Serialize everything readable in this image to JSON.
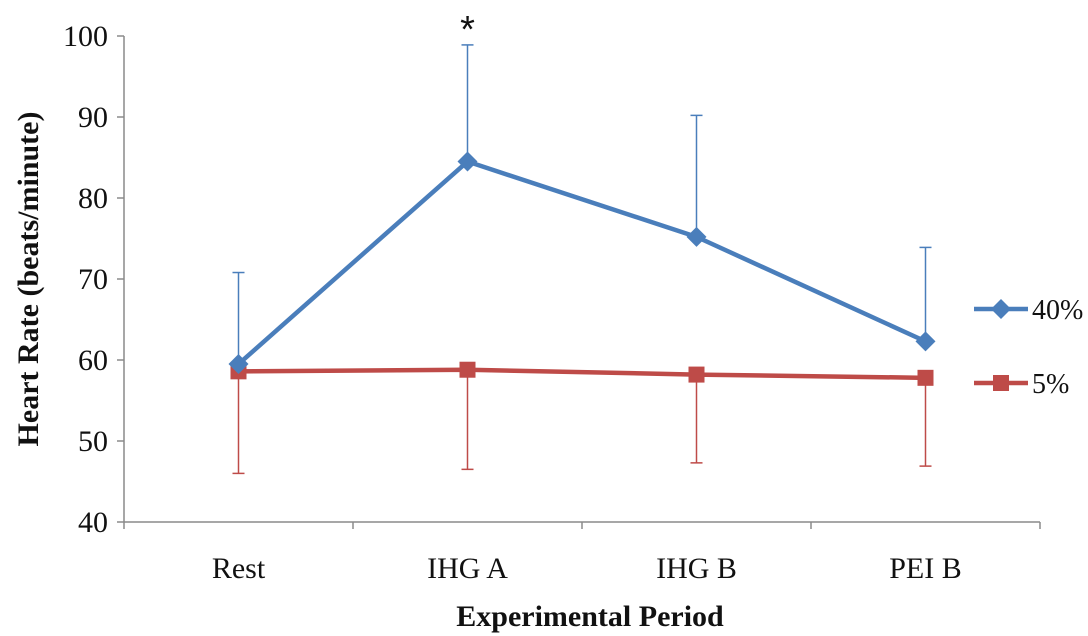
{
  "chart_data": {
    "type": "line",
    "xlabel": "Experimental Period",
    "ylabel": "Heart Rate (beats/minute)",
    "categories": [
      "Rest",
      "IHG A",
      "IHG B",
      "PEI B"
    ],
    "ylim": [
      40,
      100
    ],
    "yticks": [
      40,
      50,
      60,
      70,
      80,
      90,
      100
    ],
    "grid": false,
    "legend_position": "right",
    "series": [
      {
        "name": "40%",
        "color": "#4a7ebb",
        "marker": "diamond",
        "values": [
          59.5,
          84.5,
          75.2,
          62.3
        ],
        "error_upper": [
          70.8,
          98.9,
          90.2,
          73.9
        ],
        "error_direction": "up"
      },
      {
        "name": "5%",
        "color": "#be4b48",
        "marker": "square",
        "values": [
          58.6,
          58.8,
          58.2,
          57.8
        ],
        "error_lower": [
          46.0,
          46.5,
          47.3,
          46.9
        ],
        "error_direction": "down"
      }
    ],
    "annotations": [
      {
        "text": "*",
        "category": "IHG A",
        "y": 100.5
      }
    ]
  }
}
